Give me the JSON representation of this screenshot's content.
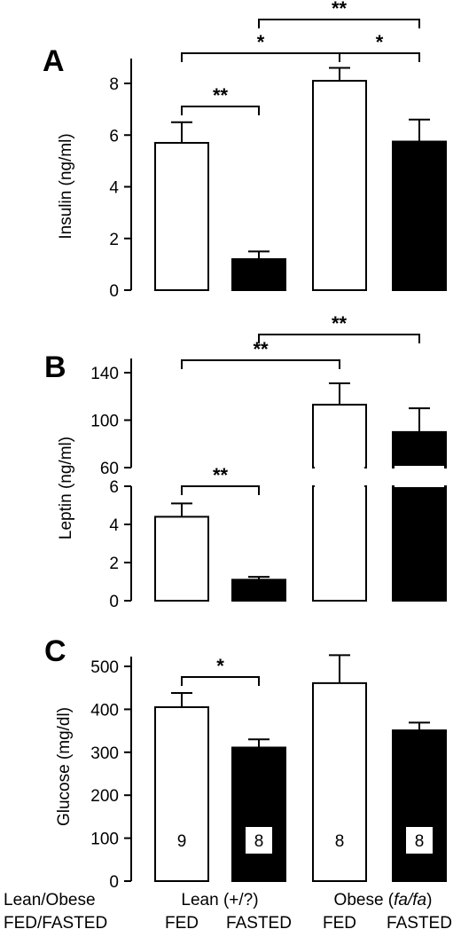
{
  "chart_data": [
    {
      "panel": "A",
      "type": "bar",
      "ylabel": "Insulin (ng/ml)",
      "ylim": [
        0,
        8
      ],
      "yticks": [
        "0",
        "2",
        "4",
        "6",
        "8"
      ],
      "bars": [
        {
          "group": "Lean (+/?)",
          "state": "FED",
          "value": 5.7,
          "error": 0.8,
          "fill": "white"
        },
        {
          "group": "Lean (+/?)",
          "state": "FASTED",
          "value": 1.2,
          "error": 0.3,
          "fill": "black"
        },
        {
          "group": "Obese (fa/fa)",
          "state": "FED",
          "value": 8.1,
          "error": 0.5,
          "fill": "white"
        },
        {
          "group": "Obese (fa/fa)",
          "state": "FASTED",
          "value": 5.75,
          "error": 0.85,
          "fill": "black"
        }
      ],
      "significance": [
        {
          "from": 0,
          "to": 1,
          "label": "**"
        },
        {
          "from": 0,
          "to": 2,
          "label": "*"
        },
        {
          "from": 2,
          "to": 3,
          "label": "*"
        },
        {
          "from": 1,
          "to": 3,
          "label": "**"
        }
      ]
    },
    {
      "panel": "B",
      "type": "bar",
      "ylabel": "Leptin (ng/ml)",
      "broken_axis": {
        "lower": [
          0,
          6
        ],
        "upper": [
          60,
          140
        ]
      },
      "yticks_lower": [
        "0",
        "2",
        "4",
        "6"
      ],
      "yticks_upper": [
        "60",
        "100",
        "140"
      ],
      "bars": [
        {
          "group": "Lean (+/?)",
          "state": "FED",
          "value": 4.4,
          "error": 0.7,
          "fill": "white"
        },
        {
          "group": "Lean (+/?)",
          "state": "FASTED",
          "value": 1.1,
          "error": 0.15,
          "fill": "black"
        },
        {
          "group": "Obese (fa/fa)",
          "state": "FED",
          "value": 113,
          "error": 18,
          "fill": "white"
        },
        {
          "group": "Obese (fa/fa)",
          "state": "FASTED",
          "value": 90,
          "error": 20,
          "fill": "black"
        }
      ],
      "significance": [
        {
          "from": 0,
          "to": 1,
          "label": "**"
        },
        {
          "from": 0,
          "to": 2,
          "label": "**"
        },
        {
          "from": 1,
          "to": 3,
          "label": "**"
        }
      ]
    },
    {
      "panel": "C",
      "type": "bar",
      "ylabel": "Glucose (mg/dl)",
      "ylim": [
        0,
        500
      ],
      "yticks": [
        "0",
        "100",
        "200",
        "300",
        "400",
        "500"
      ],
      "bars": [
        {
          "group": "Lean (+/?)",
          "state": "FED",
          "value": 405,
          "error": 33,
          "fill": "white",
          "n": "9"
        },
        {
          "group": "Lean (+/?)",
          "state": "FASTED",
          "value": 311,
          "error": 19,
          "fill": "black",
          "n": "8"
        },
        {
          "group": "Obese (fa/fa)",
          "state": "FED",
          "value": 461,
          "error": 65,
          "fill": "white",
          "n": "8"
        },
        {
          "group": "Obese (fa/fa)",
          "state": "FASTED",
          "value": 351,
          "error": 18,
          "fill": "black",
          "n": "8"
        }
      ],
      "significance": [
        {
          "from": 0,
          "to": 1,
          "label": "*"
        }
      ]
    }
  ],
  "row_labels": {
    "line1": "Lean/Obese",
    "line2": "FED/FASTED"
  },
  "groups": {
    "lean": "Lean (+/?)",
    "obese_prefix": "Obese (",
    "obese_genotype": "fa/fa",
    "obese_suffix": ")"
  },
  "states": [
    "FED",
    "FASTED",
    "FED",
    "FASTED"
  ]
}
